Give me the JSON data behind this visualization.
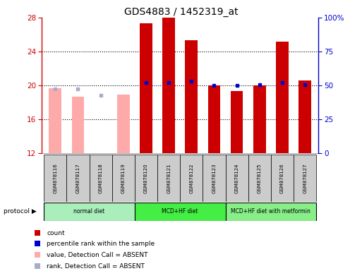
{
  "title": "GDS4883 / 1452319_at",
  "samples": [
    "GSM878116",
    "GSM878117",
    "GSM878118",
    "GSM878119",
    "GSM878120",
    "GSM878121",
    "GSM878122",
    "GSM878123",
    "GSM878124",
    "GSM878125",
    "GSM878126",
    "GSM878127"
  ],
  "count_values": [
    null,
    null,
    null,
    null,
    27.3,
    28.0,
    25.3,
    20.0,
    19.3,
    20.0,
    25.2,
    20.6
  ],
  "percentile_values": [
    null,
    null,
    null,
    null,
    20.3,
    20.3,
    20.5,
    20.0,
    20.0,
    20.1,
    20.3,
    20.1
  ],
  "absent_value": [
    19.7,
    18.7,
    null,
    18.9,
    null,
    null,
    null,
    null,
    null,
    null,
    null,
    null
  ],
  "absent_rank": [
    19.6,
    19.6,
    18.8,
    null,
    null,
    null,
    null,
    null,
    null,
    null,
    null,
    null
  ],
  "protocols": [
    {
      "label": "normal diet",
      "start": 0,
      "end": 4,
      "color": "#aaeebb"
    },
    {
      "label": "MCD+HF diet",
      "start": 4,
      "end": 8,
      "color": "#44ee44"
    },
    {
      "label": "MCD+HF diet with metformin",
      "start": 8,
      "end": 12,
      "color": "#88ee88"
    }
  ],
  "ylim": [
    12,
    28
  ],
  "ylim_right": [
    0,
    100
  ],
  "yticks_left": [
    12,
    16,
    20,
    24,
    28
  ],
  "yticks_right": [
    0,
    25,
    50,
    75,
    100
  ],
  "bar_color_count": "#cc0000",
  "bar_color_absent": "#ffaaaa",
  "dot_color_percentile": "#0000cc",
  "dot_color_absent_rank": "#aaaacc",
  "bar_width": 0.55,
  "background_plot": "#ffffff",
  "left_axis_color": "#cc0000",
  "right_axis_color": "#0000cc",
  "sample_box_color": "#cccccc",
  "grid_color": "black",
  "grid_style": "dotted"
}
